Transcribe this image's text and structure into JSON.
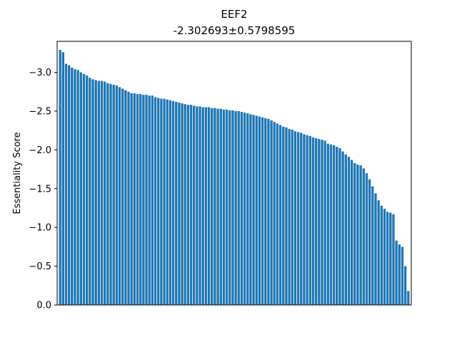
{
  "chart_data": {
    "type": "bar",
    "title": "EEF2",
    "subtitle": "-2.302693±0.5798595",
    "xlabel": "",
    "ylabel": "Essentiality Score",
    "y_inverted": true,
    "ylim": [
      0.0,
      -3.4
    ],
    "yticks": [
      0.0,
      -0.5,
      -1.0,
      -1.5,
      -2.0,
      -2.5,
      -3.0
    ],
    "ytick_labels": [
      "0.0",
      "−0.5",
      "−1.0",
      "−1.5",
      "−2.0",
      "−2.5",
      "−3.0"
    ],
    "grid": false,
    "bar_color": "#1f77b4",
    "values": [
      -3.29,
      -3.26,
      -3.11,
      -3.09,
      -3.06,
      -3.04,
      -3.03,
      -3.0,
      -2.98,
      -2.96,
      -2.93,
      -2.91,
      -2.9,
      -2.89,
      -2.89,
      -2.88,
      -2.86,
      -2.85,
      -2.84,
      -2.83,
      -2.81,
      -2.79,
      -2.77,
      -2.75,
      -2.73,
      -2.73,
      -2.72,
      -2.72,
      -2.71,
      -2.71,
      -2.7,
      -2.7,
      -2.68,
      -2.67,
      -2.66,
      -2.66,
      -2.65,
      -2.64,
      -2.63,
      -2.62,
      -2.61,
      -2.6,
      -2.59,
      -2.58,
      -2.58,
      -2.57,
      -2.56,
      -2.56,
      -2.55,
      -2.55,
      -2.55,
      -2.54,
      -2.54,
      -2.53,
      -2.53,
      -2.52,
      -2.52,
      -2.51,
      -2.51,
      -2.5,
      -2.5,
      -2.49,
      -2.48,
      -2.47,
      -2.46,
      -2.45,
      -2.44,
      -2.43,
      -2.42,
      -2.41,
      -2.4,
      -2.38,
      -2.36,
      -2.34,
      -2.32,
      -2.3,
      -2.29,
      -2.27,
      -2.26,
      -2.24,
      -2.23,
      -2.22,
      -2.2,
      -2.19,
      -2.18,
      -2.16,
      -2.15,
      -2.14,
      -2.13,
      -2.12,
      -2.08,
      -2.07,
      -2.06,
      -2.04,
      -2.02,
      -1.98,
      -1.94,
      -1.91,
      -1.87,
      -1.83,
      -1.81,
      -1.8,
      -1.76,
      -1.7,
      -1.62,
      -1.53,
      -1.44,
      -1.35,
      -1.28,
      -1.24,
      -1.2,
      -1.19,
      -1.17,
      -0.83,
      -0.78,
      -0.75,
      -0.5,
      -0.18
    ]
  }
}
